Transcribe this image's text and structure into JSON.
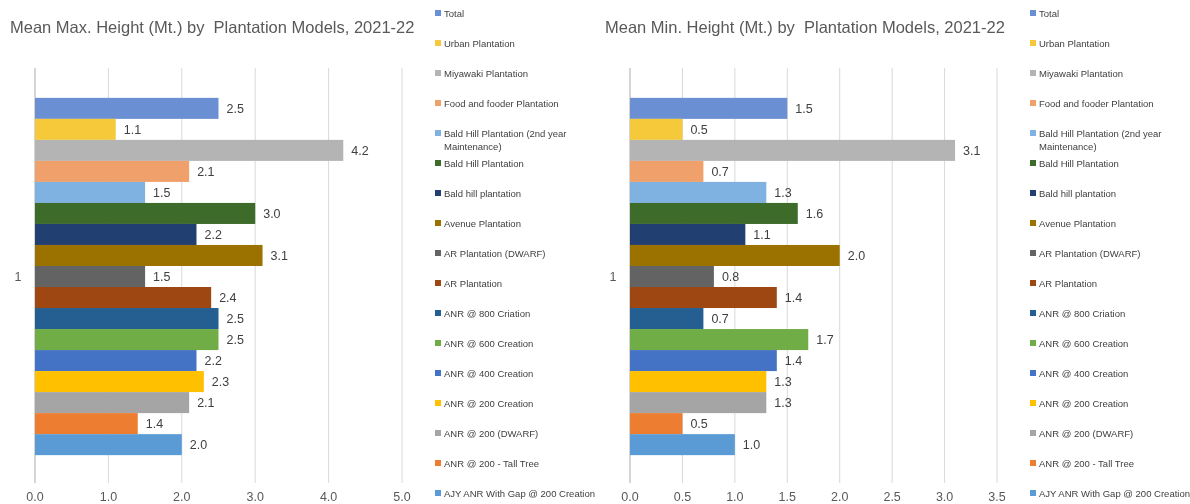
{
  "chart_data": [
    {
      "type": "bar",
      "orientation": "horizontal",
      "title": "Mean Max. Height (Mt.) by  Plantation Models, 2021-22",
      "categories": [
        "1"
      ],
      "xlim": [
        0,
        5
      ],
      "xticks": [
        {
          "value": 0,
          "label": "0.0"
        },
        {
          "value": 1,
          "label": "1.0"
        },
        {
          "value": 2,
          "label": "2.0"
        },
        {
          "value": 3,
          "label": "3.0"
        },
        {
          "value": 4,
          "label": "4.0"
        },
        {
          "value": 5,
          "label": "5.0"
        }
      ],
      "grid": "x",
      "legend": "right",
      "series": [
        {
          "name": "Total",
          "color": "#6a8fd2",
          "values": [
            2.5
          ],
          "value_labels": [
            "2.5"
          ]
        },
        {
          "name": "Urban Plantation",
          "color": "#f6c93a",
          "values": [
            1.1
          ],
          "value_labels": [
            "1.1"
          ]
        },
        {
          "name": "Miyawaki Plantation",
          "color": "#b4b4b4",
          "values": [
            4.2
          ],
          "value_labels": [
            "4.2"
          ]
        },
        {
          "name": "Food and fooder Plantation",
          "color": "#f0a06a",
          "values": [
            2.1
          ],
          "value_labels": [
            "2.1"
          ]
        },
        {
          "name": "Bald Hill Plantation (2nd year Maintenance)",
          "color": "#7fb2e0",
          "values": [
            1.5
          ],
          "value_labels": [
            "1.5"
          ]
        },
        {
          "name": "Bald Hill Plantation",
          "color": "#3d6b2a",
          "values": [
            3.0
          ],
          "value_labels": [
            "3.0"
          ]
        },
        {
          "name": "Bald hill plantation",
          "color": "#223f72",
          "values": [
            2.2
          ],
          "value_labels": [
            "2.2"
          ]
        },
        {
          "name": "Avenue Plantation",
          "color": "#9b7200",
          "values": [
            3.1
          ],
          "value_labels": [
            "3.1"
          ]
        },
        {
          "name": "AR Plantation (DWARF)",
          "color": "#636363",
          "values": [
            1.5
          ],
          "value_labels": [
            "1.5"
          ]
        },
        {
          "name": "AR Plantation",
          "color": "#9f4712",
          "values": [
            2.4
          ],
          "value_labels": [
            "2.4"
          ]
        },
        {
          "name": "ANR @ 800 Criation",
          "color": "#255e91",
          "values": [
            2.5
          ],
          "value_labels": [
            "2.5"
          ]
        },
        {
          "name": "ANR @ 600 Creation",
          "color": "#70ad47",
          "values": [
            2.5
          ],
          "value_labels": [
            "2.5"
          ]
        },
        {
          "name": "ANR @ 400 Creation",
          "color": "#4472c4",
          "values": [
            2.2
          ],
          "value_labels": [
            "2.2"
          ]
        },
        {
          "name": "ANR @ 200 Creation",
          "color": "#ffc000",
          "values": [
            2.3
          ],
          "value_labels": [
            "2.3"
          ]
        },
        {
          "name": "ANR @ 200 (DWARF)",
          "color": "#a5a5a5",
          "values": [
            2.1
          ],
          "value_labels": [
            "2.1"
          ]
        },
        {
          "name": "ANR @ 200 - Tall Tree",
          "color": "#ed7d31",
          "values": [
            1.4
          ],
          "value_labels": [
            "1.4"
          ]
        },
        {
          "name": "AJY ANR With Gap @ 200 Creation",
          "color": "#5b9bd5",
          "values": [
            2.0
          ],
          "value_labels": [
            "2.0"
          ]
        }
      ]
    },
    {
      "type": "bar",
      "orientation": "horizontal",
      "title": "Mean Min. Height (Mt.) by  Plantation Models, 2021-22",
      "categories": [
        "1"
      ],
      "xlim": [
        0,
        3.5
      ],
      "xticks": [
        {
          "value": 0,
          "label": "0.0"
        },
        {
          "value": 0.5,
          "label": "0.5"
        },
        {
          "value": 1,
          "label": "1.0"
        },
        {
          "value": 1.5,
          "label": "1.5"
        },
        {
          "value": 2,
          "label": "2.0"
        },
        {
          "value": 2.5,
          "label": "2.5"
        },
        {
          "value": 3,
          "label": "3.0"
        },
        {
          "value": 3.5,
          "label": "3.5"
        }
      ],
      "grid": "x",
      "legend": "right",
      "series": [
        {
          "name": "Total",
          "color": "#6a8fd2",
          "values": [
            1.5
          ],
          "value_labels": [
            "1.5"
          ]
        },
        {
          "name": "Urban Plantation",
          "color": "#f6c93a",
          "values": [
            0.5
          ],
          "value_labels": [
            "0.5"
          ]
        },
        {
          "name": "Miyawaki Plantation",
          "color": "#b4b4b4",
          "values": [
            3.1
          ],
          "value_labels": [
            "3.1"
          ]
        },
        {
          "name": "Food and fooder Plantation",
          "color": "#f0a06a",
          "values": [
            0.7
          ],
          "value_labels": [
            "0.7"
          ]
        },
        {
          "name": "Bald Hill Plantation (2nd year Maintenance)",
          "color": "#7fb2e0",
          "values": [
            1.3
          ],
          "value_labels": [
            "1.3"
          ]
        },
        {
          "name": "Bald Hill Plantation",
          "color": "#3d6b2a",
          "values": [
            1.6
          ],
          "value_labels": [
            "1.6"
          ]
        },
        {
          "name": "Bald hill plantation",
          "color": "#223f72",
          "values": [
            1.1
          ],
          "value_labels": [
            "1.1"
          ]
        },
        {
          "name": "Avenue Plantation",
          "color": "#9b7200",
          "values": [
            2.0
          ],
          "value_labels": [
            "2.0"
          ]
        },
        {
          "name": "AR Plantation (DWARF)",
          "color": "#636363",
          "values": [
            0.8
          ],
          "value_labels": [
            "0.8"
          ]
        },
        {
          "name": "AR Plantation",
          "color": "#9f4712",
          "values": [
            1.4
          ],
          "value_labels": [
            "1.4"
          ]
        },
        {
          "name": "ANR @ 800 Criation",
          "color": "#255e91",
          "values": [
            0.7
          ],
          "value_labels": [
            "0.7"
          ]
        },
        {
          "name": "ANR @ 600 Creation",
          "color": "#70ad47",
          "values": [
            1.7
          ],
          "value_labels": [
            "1.7"
          ]
        },
        {
          "name": "ANR @ 400 Creation",
          "color": "#4472c4",
          "values": [
            1.4
          ],
          "value_labels": [
            "1.4"
          ]
        },
        {
          "name": "ANR @ 200 Creation",
          "color": "#ffc000",
          "values": [
            1.3
          ],
          "value_labels": [
            "1.3"
          ]
        },
        {
          "name": "ANR @ 200 (DWARF)",
          "color": "#a5a5a5",
          "values": [
            1.3
          ],
          "value_labels": [
            "1.3"
          ]
        },
        {
          "name": "ANR @ 200 - Tall Tree",
          "color": "#ed7d31",
          "values": [
            0.5
          ],
          "value_labels": [
            "0.5"
          ]
        },
        {
          "name": "AJY ANR With Gap @ 200 Creation",
          "color": "#5b9bd5",
          "values": [
            1.0
          ],
          "value_labels": [
            "1.0"
          ]
        }
      ]
    }
  ]
}
